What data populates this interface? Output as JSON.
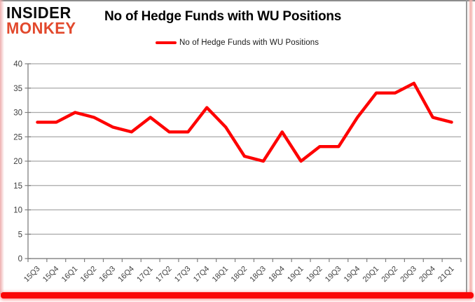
{
  "brand": {
    "line1": "INSIDER",
    "line2": "MONKEY"
  },
  "header": {
    "title": "No of Hedge Funds with WU Positions"
  },
  "legend": {
    "label": "No of Hedge Funds with WU Positions",
    "color": "#fe0000"
  },
  "chart_data": {
    "type": "line",
    "title": "No of Hedge Funds with WU Positions",
    "categories": [
      "15Q3",
      "15Q4",
      "16Q1",
      "16Q2",
      "16Q3",
      "16Q4",
      "17Q1",
      "17Q2",
      "17Q3",
      "17Q4",
      "18Q1",
      "18Q2",
      "18Q3",
      "18Q4",
      "19Q1",
      "19Q2",
      "19Q3",
      "19Q4",
      "20Q1",
      "20Q2",
      "20Q3",
      "20Q4",
      "21Q1"
    ],
    "series": [
      {
        "name": "No of Hedge Funds with WU Positions",
        "color": "#fe0000",
        "values": [
          28,
          28,
          30,
          29,
          27,
          26,
          29,
          26,
          26,
          31,
          27,
          21,
          20,
          26,
          20,
          23,
          23,
          29,
          34,
          34,
          36,
          29,
          28
        ]
      }
    ],
    "xlabel": "",
    "ylabel": "",
    "ylim": [
      0,
      40
    ],
    "ytick_step": 5,
    "yticks": [
      0,
      5,
      10,
      15,
      20,
      25,
      30,
      35,
      40
    ],
    "grid": true,
    "legend_position": "top"
  },
  "colors": {
    "line_red": "#fe0000",
    "logo_red": "#e2492d",
    "gridline": "#a8a8a8",
    "axis": "#7f7f7f",
    "tick_label": "#3f3f3f",
    "frame_bottom_red": "#fa0606",
    "frame_pink": "#f3b0ab",
    "frame_gray": "#8c8c8c"
  }
}
